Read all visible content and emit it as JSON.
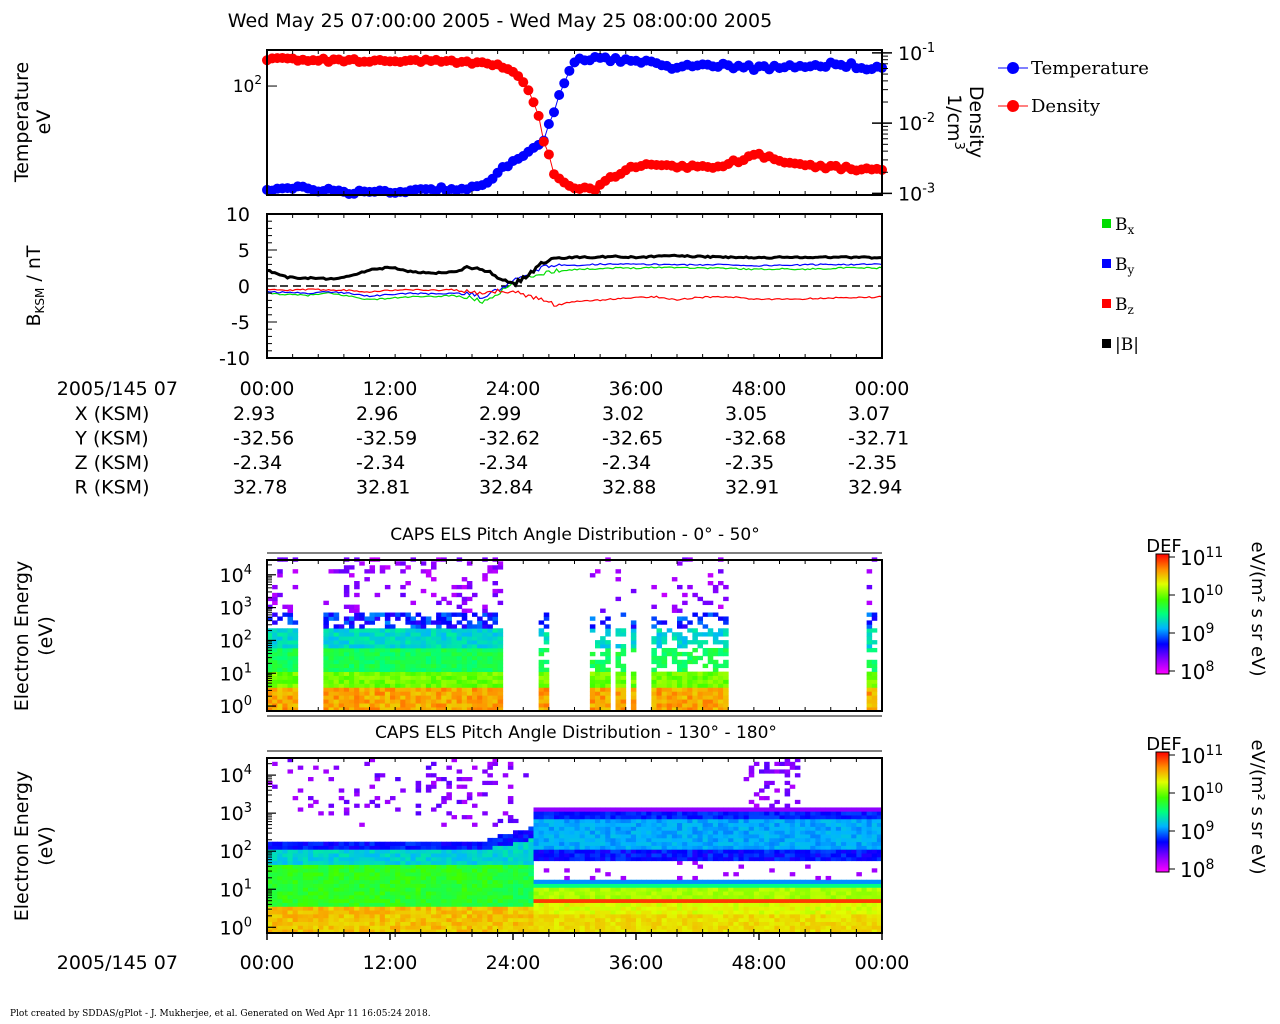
{
  "header": {
    "title": "Wed May 25 07:00:00 2005 - Wed May 25 08:00:00 2005"
  },
  "footer": {
    "credit": "Plot created by SDDAS/gPlot - J. Mukherjee, et al.  Generated on Wed Apr 11 16:05:24 2018."
  },
  "colors": {
    "temperature": "#0000ff",
    "density": "#ff0000",
    "bx": "#00dd00",
    "by": "#0000ff",
    "bz": "#ff0000",
    "bmag": "#000000"
  },
  "time_axis": {
    "date_label": "2005/145 07",
    "ticks": [
      "00:00",
      "12:00",
      "24:00",
      "36:00",
      "48:00",
      "00:00"
    ]
  },
  "ephemeris": {
    "rows": [
      {
        "label": "X (KSM)",
        "values": [
          "2.93",
          "2.96",
          "2.99",
          "3.02",
          "3.05",
          "3.07"
        ]
      },
      {
        "label": "Y (KSM)",
        "values": [
          "-32.56",
          "-32.59",
          "-32.62",
          "-32.65",
          "-32.68",
          "-32.71"
        ]
      },
      {
        "label": "Z (KSM)",
        "values": [
          "-2.34",
          "-2.34",
          "-2.34",
          "-2.34",
          "-2.35",
          "-2.35"
        ]
      },
      {
        "label": "R (KSM)",
        "values": [
          "32.78",
          "32.81",
          "32.84",
          "32.88",
          "32.91",
          "32.94"
        ]
      }
    ]
  },
  "chart_data": [
    {
      "type": "line",
      "ylabel": "Temperature",
      "yunit": "eV",
      "y2label": "Density",
      "y2unit": "1/cm3",
      "y_tick": "10^2",
      "y2_ticks": [
        "10^-1",
        "10^-2",
        "10^-3"
      ],
      "y2lim": [
        0.00095,
        0.11
      ],
      "x": [
        0,
        4,
        8,
        12,
        16,
        20,
        22,
        24,
        26,
        27,
        28,
        30,
        32,
        36,
        40,
        44,
        48,
        52,
        56,
        60
      ],
      "series": [
        {
          "name": "Temperature",
          "values": [
            24,
            24,
            23,
            23,
            24,
            24,
            27,
            36,
            42,
            47,
            68,
            140,
            150,
            140,
            130,
            135,
            128,
            134,
            135,
            127
          ]
        },
        {
          "name": "Density",
          "values": [
            0.082,
            0.08,
            0.078,
            0.077,
            0.076,
            0.074,
            0.07,
            0.055,
            0.02,
            0.0055,
            0.0018,
            0.0012,
            0.0011,
            0.0025,
            0.0024,
            0.0024,
            0.0035,
            0.0025,
            0.0023,
            0.0021
          ]
        }
      ],
      "legend": "right"
    },
    {
      "type": "line",
      "ylabel": "B",
      "ylabel_sub": "KSM",
      "yunit": "nT",
      "ylim": [
        -10,
        10
      ],
      "y_ticks": [
        "10",
        "5",
        "0",
        "-5",
        "-10"
      ],
      "x": [
        0,
        2,
        4,
        6,
        8,
        10,
        12,
        14,
        16,
        18,
        20,
        21,
        22,
        23,
        24,
        25,
        26,
        27,
        28,
        30,
        32,
        34,
        36,
        38,
        40,
        42,
        44,
        46,
        48,
        50,
        52,
        54,
        56,
        58,
        60
      ],
      "series": [
        {
          "name": "Bx",
          "values": [
            -1.0,
            -1.2,
            -1.3,
            -1.0,
            -1.4,
            -1.9,
            -1.7,
            -1.5,
            -1.5,
            -1.3,
            -1.7,
            -2.2,
            -1.5,
            -0.6,
            0.3,
            0.9,
            1.4,
            1.8,
            2.1,
            2.3,
            2.4,
            2.5,
            2.5,
            2.6,
            2.6,
            2.5,
            2.5,
            2.4,
            2.3,
            2.4,
            2.3,
            2.4,
            2.5,
            2.5,
            2.5
          ]
        },
        {
          "name": "By",
          "values": [
            -0.8,
            -0.9,
            -1.0,
            -0.8,
            -1.0,
            -1.4,
            -1.2,
            -1.0,
            -1.1,
            -1.0,
            -1.2,
            -1.5,
            -0.9,
            -0.2,
            0.6,
            1.4,
            2.1,
            2.6,
            2.8,
            2.9,
            3.0,
            3.1,
            3.0,
            3.0,
            3.0,
            2.9,
            3.0,
            2.9,
            2.8,
            2.9,
            2.9,
            3.0,
            3.0,
            3.0,
            3.0
          ]
        },
        {
          "name": "Bz",
          "values": [
            -0.5,
            -0.6,
            -0.5,
            -0.5,
            -0.6,
            -0.8,
            -0.6,
            -0.5,
            -0.6,
            -0.5,
            -0.9,
            -1.2,
            -0.8,
            -0.6,
            -0.8,
            -1.2,
            -1.6,
            -1.8,
            -2.6,
            -2.2,
            -2.0,
            -1.8,
            -1.6,
            -1.5,
            -1.9,
            -1.6,
            -1.5,
            -1.6,
            -1.9,
            -1.8,
            -1.8,
            -1.7,
            -1.6,
            -1.6,
            -1.5
          ]
        },
        {
          "name": "|B|",
          "values": [
            2.2,
            1.2,
            1.1,
            1.0,
            1.3,
            2.2,
            2.6,
            2.0,
            1.8,
            1.9,
            2.6,
            2.3,
            1.6,
            0.7,
            0.2,
            1.0,
            2.2,
            3.4,
            3.8,
            4.0,
            4.0,
            4.1,
            4.0,
            4.1,
            4.2,
            4.1,
            4.0,
            4.0,
            3.9,
            4.0,
            4.0,
            4.0,
            4.0,
            4.0,
            3.9
          ]
        }
      ],
      "legend": "right"
    },
    {
      "type": "heatmap",
      "title": "CAPS ELS Pitch Angle Distribution - 0° - 50°",
      "ylabel": "Electron Energy",
      "yunit": "(eV)",
      "y_ticks": [
        "10^4",
        "10^3",
        "10^2",
        "10^1",
        "10^0"
      ],
      "yscale": "log",
      "colorbar": {
        "label": "DEF",
        "unit": "eV/(m2 s sr eV)",
        "ticks": [
          "10^11",
          "10^10",
          "10^9",
          "10^8"
        ]
      },
      "data_segments": [
        [
          0,
          2.8
        ],
        [
          5.5,
          23
        ],
        [
          26.5,
          27.5
        ],
        [
          31.5,
          33.5
        ],
        [
          34,
          35
        ],
        [
          35.5,
          36
        ],
        [
          37.5,
          45
        ],
        [
          58.5,
          59.5
        ]
      ],
      "low_energy_limit_eV": 300
    },
    {
      "type": "heatmap",
      "title": "CAPS ELS Pitch Angle Distribution - 130° - 180°",
      "ylabel": "Electron Energy",
      "yunit": "(eV)",
      "y_ticks": [
        "10^4",
        "10^3",
        "10^2",
        "10^1",
        "10^0"
      ],
      "yscale": "log",
      "colorbar": {
        "label": "DEF",
        "unit": "eV/(m2 s sr eV)",
        "ticks": [
          "10^11",
          "10^10",
          "10^9",
          "10^8"
        ]
      },
      "transition_minute": 27
    }
  ]
}
